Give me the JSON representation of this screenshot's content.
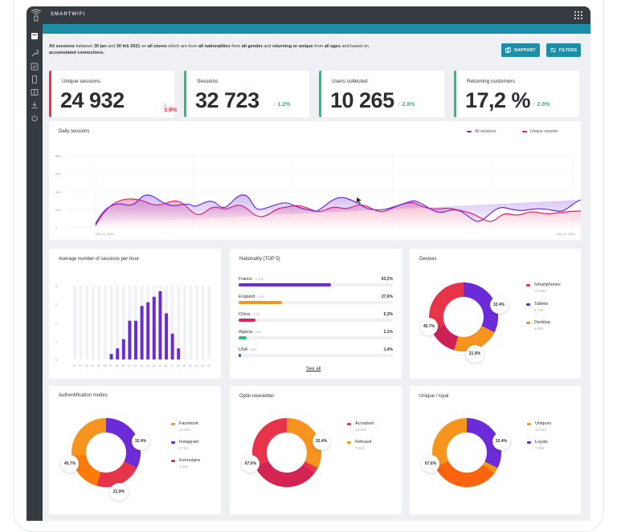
{
  "app": {
    "brand": "SMARTWIFI"
  },
  "filter": {
    "p1": "All sessions",
    "p2": " between ",
    "p3": "30 jan",
    "p4": " and ",
    "p5": "30 feb 2021",
    "p6": " on ",
    "p7": "all stores",
    "p8": " which are from ",
    "p9": "all nationalities",
    "p10": " from ",
    "p11": "all gender",
    "p12": " and ",
    "p13": "returning or unique",
    "p14": " from ",
    "p15": "all ages",
    "p16": " and based on ",
    "p17": "accumulated connections."
  },
  "toolbar": {
    "report_label": "RAPPORT",
    "filters_label": "FILTERS"
  },
  "kpis": [
    {
      "label": "Unique sessions",
      "value": "24 932",
      "trend": "↓ 3.8%",
      "dir": "down"
    },
    {
      "label": "Sessions",
      "value": "32 723",
      "trend": "↑ 1.2%",
      "dir": "up"
    },
    {
      "label": "Users collected",
      "value": "10 265",
      "trend": "↑ 2.8%",
      "dir": "up"
    },
    {
      "label": "Returning customers",
      "value": "17,2 %",
      "trend": "↑ 2.8%",
      "dir": "up"
    }
  ],
  "daily": {
    "title": "Daily sessions",
    "legend": [
      "All sessions",
      "Unique session"
    ],
    "yticks": [
      "800",
      "600",
      "400",
      "200",
      "0"
    ],
    "xstart": "Nov 20, 2020",
    "xend": "Dec 13, 2020"
  },
  "hourly": {
    "title": "Average number of sessions per hour",
    "yticks": [
      "4",
      "3",
      "2",
      "1",
      "0"
    ],
    "hours": [
      "01",
      "02",
      "03",
      "04",
      "05",
      "06",
      "07",
      "08",
      "09",
      "10",
      "11",
      "12",
      "13",
      "14",
      "15",
      "16",
      "17",
      "18",
      "19",
      "20",
      "21",
      "22",
      "23"
    ],
    "values": [
      0,
      0,
      0,
      0,
      0,
      0,
      0.3,
      0.6,
      1.1,
      2.1,
      2.1,
      2.9,
      3.1,
      3.4,
      3.7,
      2.5,
      1.4,
      0.6,
      0,
      0,
      0,
      0,
      0
    ]
  },
  "nationality": {
    "title": "Nationality (TOP 5)",
    "see_all": "See all",
    "rows": [
      {
        "name": "France",
        "count": "12 945",
        "pct": "63,2%",
        "fill": 0.6,
        "color": "#6c2bd9"
      },
      {
        "name": "England",
        "count": "6 945",
        "pct": "27,6%",
        "fill": 0.28,
        "color": "#f7941d"
      },
      {
        "name": "China",
        "count": "2 195",
        "pct": "6,3%",
        "fill": 0.11,
        "color": "#e91e63"
      },
      {
        "name": "Algeria",
        "count": "2990",
        "pct": "2,1%",
        "fill": 0.05,
        "color": "#2bbd7e"
      },
      {
        "name": "USA",
        "count": "1945",
        "pct": "1,4%",
        "fill": 0.015,
        "color": "#1e6e7e"
      }
    ]
  },
  "devices": {
    "title": "Devices",
    "labels": [
      "32.4%",
      "21.9%",
      "45.7%"
    ],
    "legend": [
      {
        "name": "Smartphones",
        "count": "12 945",
        "color": "#e8344a"
      },
      {
        "name": "Tablets",
        "count": "6 755",
        "color": "#6c2bd9"
      },
      {
        "name": "Desktop",
        "count": "4 295",
        "color": "#f7941d"
      }
    ]
  },
  "auth": {
    "title": "Authentification modes",
    "labels": [
      "32.4%",
      "21.9%",
      "45.7%"
    ],
    "legend": [
      {
        "name": "Facebook",
        "count": "12 945",
        "color": "#f7941d"
      },
      {
        "name": "Instagram",
        "count": "9 752",
        "color": "#6c2bd9"
      },
      {
        "name": "Formulaire",
        "count": "4 294",
        "color": "#e8344a"
      }
    ]
  },
  "optin": {
    "title": "Optin newsletter",
    "labels": [
      "32.4%",
      "67.6%"
    ],
    "legend": [
      {
        "name": "Accepted",
        "count": "12 945",
        "color": "#e8344a"
      },
      {
        "name": "Refused",
        "count": "7 255",
        "color": "#f7941d"
      }
    ]
  },
  "unique": {
    "title": "Unique / loyal",
    "labels": [
      "32.4%",
      "67.6%"
    ],
    "legend": [
      {
        "name": "Uniques",
        "count": "12 945",
        "color": "#f7941d"
      },
      {
        "name": "Loyals",
        "count": "7 255",
        "color": "#6c2bd9"
      }
    ]
  }
}
